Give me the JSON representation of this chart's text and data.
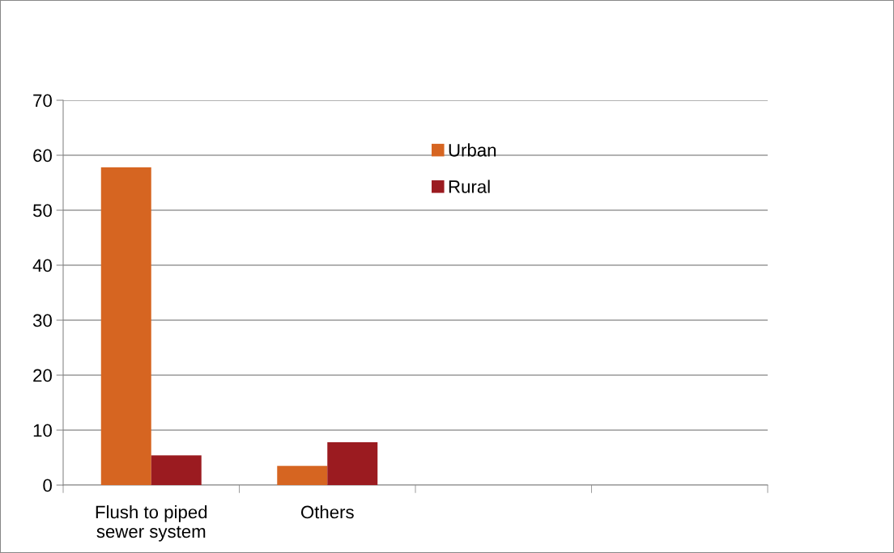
{
  "chart_data": {
    "type": "bar",
    "categories": [
      "Flush to piped\nsewer system",
      "Others",
      null,
      null
    ],
    "series": [
      {
        "name": "Urban",
        "color": "#d66521",
        "values": [
          57.8,
          3.5,
          null,
          null
        ]
      },
      {
        "name": "Rural",
        "color": "#9b1b20",
        "values": [
          5.4,
          7.8,
          null,
          null
        ]
      }
    ],
    "ylim": [
      0,
      70
    ],
    "yticks": [
      0,
      10,
      20,
      30,
      40,
      50,
      60,
      70
    ],
    "grid": "y",
    "legend": "top"
  }
}
